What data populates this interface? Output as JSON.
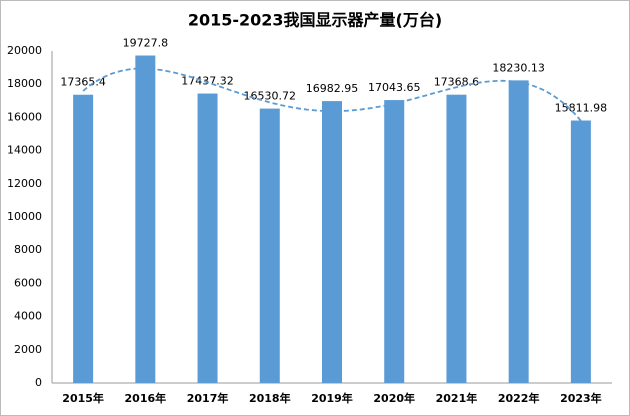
{
  "chart_data": {
    "type": "bar",
    "title": "2015-2023我国显示器产量(万台)",
    "categories": [
      "2015年",
      "2016年",
      "2017年",
      "2018年",
      "2019年",
      "2020年",
      "2021年",
      "2022年",
      "2023年"
    ],
    "values": [
      17365.4,
      19727.8,
      17437.32,
      16530.72,
      16982.95,
      17043.65,
      17368.6,
      18230.13,
      15811.98
    ],
    "color": "#5b9bd5",
    "ylim": [
      0,
      20000
    ],
    "yticks": [
      0,
      2000,
      4000,
      6000,
      8000,
      10000,
      12000,
      14000,
      16000,
      18000,
      20000
    ],
    "grid": false,
    "trendline": {
      "type": "polynomial",
      "order": 4,
      "color": "#5b9bd5",
      "dashed": true
    }
  }
}
